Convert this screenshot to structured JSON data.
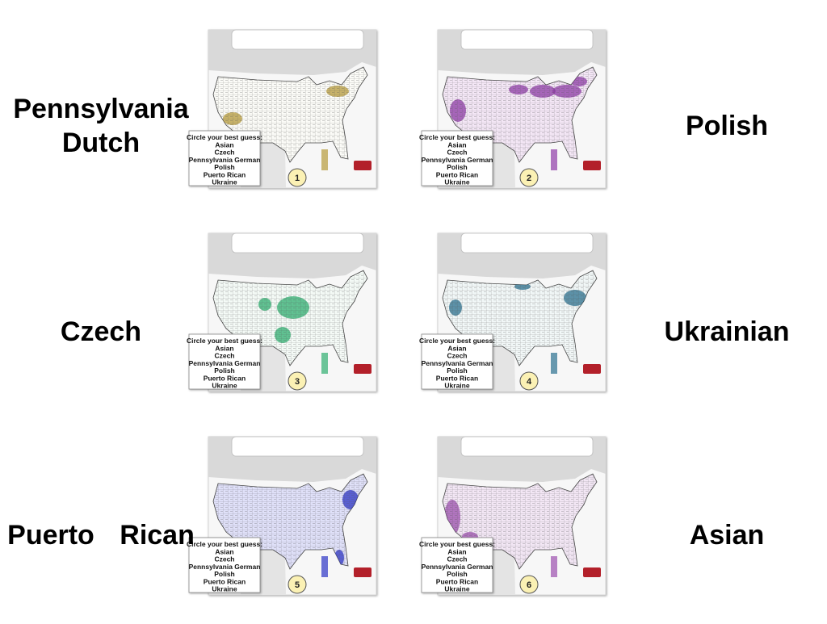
{
  "slide": {
    "panels": [
      {
        "label": [
          "Pennsylvania",
          "Dutch"
        ],
        "number": 1,
        "quiz": {
          "prompt": "Circle your best guess:",
          "options": [
            "Asian",
            "Czech",
            "Pennsylvania German",
            "Polish",
            "Puerto Rican",
            "Ukraine"
          ]
        }
      },
      {
        "label": [
          "Polish"
        ],
        "number": 2,
        "quiz": {
          "prompt": "Circle your best guess:",
          "options": [
            "Asian",
            "Czech",
            "Pennsylvania German",
            "Polish",
            "Puerto Rican",
            "Ukraine"
          ]
        }
      },
      {
        "label": [
          "Czech"
        ],
        "number": 3,
        "quiz": {
          "prompt": "Circle your best guess:",
          "options": [
            "Asian",
            "Czech",
            "Pennsylvania German",
            "Polish",
            "Puerto Rican",
            "Ukraine"
          ]
        }
      },
      {
        "label": [
          "Ukrainian"
        ],
        "number": 4,
        "quiz": {
          "prompt": "Circle your best guess:",
          "options": [
            "Asian",
            "Czech",
            "Pennsylvania German",
            "Polish",
            "Puerto Rican",
            "Ukraine"
          ]
        }
      },
      {
        "label": [
          "Puerto Rican"
        ],
        "number": 5,
        "quiz": {
          "prompt": "Circle your best guess:",
          "options": [
            "Asian",
            "Czech",
            "Pennsylvania German",
            "Polish",
            "Puerto Rican",
            "Ukraine"
          ]
        }
      },
      {
        "label": [
          "Asian"
        ],
        "number": 6,
        "quiz": {
          "prompt": "Circle your best guess:",
          "options": [
            "Asian",
            "Czech",
            "Pennsylvania German",
            "Polish",
            "Puerto Rican",
            "Ukraine"
          ]
        }
      }
    ]
  }
}
